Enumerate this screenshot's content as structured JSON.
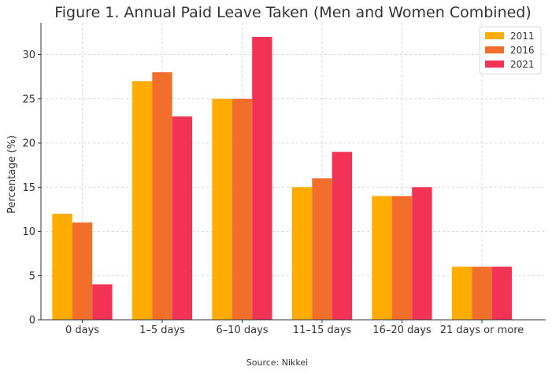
{
  "chart_data": {
    "type": "bar",
    "title": "Figure 1. Annual Paid Leave Taken (Men and Women Combined)",
    "xlabel": "",
    "ylabel": "Percentage (%)",
    "categories": [
      "0 days",
      "1–5 days",
      "6–10 days",
      "11–15 days",
      "16–20 days",
      "21 days or more"
    ],
    "series": [
      {
        "name": "2011",
        "values": [
          12,
          27,
          25,
          15,
          14,
          6
        ],
        "color": "#ffab00"
      },
      {
        "name": "2016",
        "values": [
          11,
          28,
          25,
          16,
          14,
          6
        ],
        "color": "#f26f2b"
      },
      {
        "name": "2021",
        "values": [
          4,
          23,
          32,
          19,
          15,
          6
        ],
        "color": "#f23355"
      }
    ],
    "ylim": [
      0,
      33.6
    ],
    "yticks": [
      0,
      5,
      10,
      15,
      20,
      25,
      30
    ],
    "grid": true,
    "legend_position": "top-right",
    "source": "Source: Nikkei"
  }
}
